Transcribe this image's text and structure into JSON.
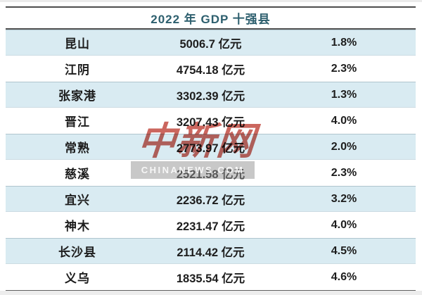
{
  "page": {
    "title": "2022 年 GDP 十强县"
  },
  "table": {
    "rows": [
      {
        "name": "昆山",
        "gdp": "5006.7",
        "unit": "亿元",
        "growth": "1.8%"
      },
      {
        "name": "江阴",
        "gdp": "4754.18",
        "unit": "亿元",
        "growth": "2.3%"
      },
      {
        "name": "张家港",
        "gdp": "3302.39",
        "unit": "亿元",
        "growth": "1.3%"
      },
      {
        "name": "晋江",
        "gdp": "3207.43",
        "unit": "亿元",
        "growth": "4.0%"
      },
      {
        "name": "常熟",
        "gdp": "2773.97",
        "unit": "亿元",
        "growth": "2.0%"
      },
      {
        "name": "慈溪",
        "gdp": "2521.58",
        "unit": "亿元",
        "growth": "2.3%"
      },
      {
        "name": "宜兴",
        "gdp": "2236.72",
        "unit": "亿元",
        "growth": "3.2%"
      },
      {
        "name": "神木",
        "gdp": "2231.47",
        "unit": "亿元",
        "growth": "4.0%"
      },
      {
        "name": "长沙县",
        "gdp": "2114.42",
        "unit": "亿元",
        "growth": "4.5%"
      },
      {
        "name": "义乌",
        "gdp": "1835.54",
        "unit": "亿元",
        "growth": "4.6%"
      }
    ]
  },
  "watermark": {
    "logo": "中新网",
    "caption": "CHINANEWS.COM"
  },
  "colors": {
    "band": "#d9ebf2",
    "title_text": "#2d5f6e",
    "heavy_border": "#4d4d4d",
    "watermark_red": "#c24b42",
    "watermark_bar": "#919191"
  },
  "chart_data": {
    "type": "table",
    "title": "2022 年 GDP 十强县",
    "columns": [
      "county",
      "gdp_yi_yuan",
      "growth_pct"
    ],
    "unit": "亿元",
    "rows": [
      [
        "昆山",
        5006.7,
        1.8
      ],
      [
        "江阴",
        4754.18,
        2.3
      ],
      [
        "张家港",
        3302.39,
        1.3
      ],
      [
        "晋江",
        3207.43,
        4.0
      ],
      [
        "常熟",
        2773.97,
        2.0
      ],
      [
        "慈溪",
        2521.58,
        2.3
      ],
      [
        "宜兴",
        2236.72,
        3.2
      ],
      [
        "神木",
        2231.47,
        4.0
      ],
      [
        "长沙县",
        2114.42,
        4.5
      ],
      [
        "义乌",
        1835.54,
        4.6
      ]
    ]
  }
}
